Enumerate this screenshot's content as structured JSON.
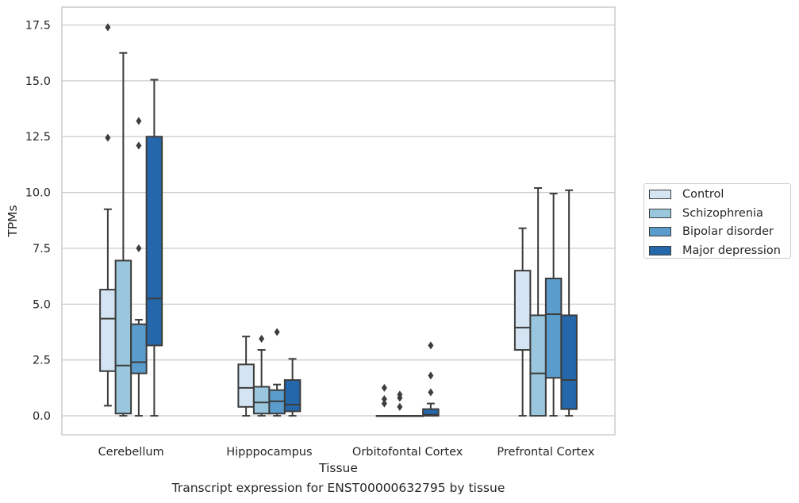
{
  "chart_data": {
    "type": "box",
    "title": "",
    "caption": "Transcript expression for ENST00000632795 by tissue",
    "xlabel": "Tissue",
    "ylabel": "TPMs",
    "ylim": [
      -0.85,
      18.3
    ],
    "yticks": [
      "0.0",
      "2.5",
      "5.0",
      "7.5",
      "10.0",
      "12.5",
      "15.0",
      "17.5"
    ],
    "ytick_values": [
      0,
      2.5,
      5,
      7.5,
      10,
      12.5,
      15,
      17.5
    ],
    "grid": "horizontal",
    "legend_position": "right",
    "categories": [
      "Cerebellum",
      "Hipppocampus",
      "Orbitofontal Cortex",
      "Prefrontal Cortex"
    ],
    "series": [
      {
        "name": "Control",
        "color": "#d4e4f2",
        "boxes": [
          {
            "whislo": 0.45,
            "q1": 2.0,
            "med": 4.35,
            "q3": 5.65,
            "whishi": 9.25,
            "fliers": [
              12.45,
              17.4
            ]
          },
          {
            "whislo": 0.0,
            "q1": 0.4,
            "med": 1.25,
            "q3": 2.3,
            "whishi": 3.55,
            "fliers": []
          },
          {
            "whislo": 0.0,
            "q1": 0.0,
            "med": 0.0,
            "q3": 0.0,
            "whishi": 0.0,
            "fliers": [
              0.55,
              0.75,
              1.25
            ]
          },
          {
            "whislo": 0.0,
            "q1": 2.95,
            "med": 3.95,
            "q3": 6.5,
            "whishi": 8.4,
            "fliers": []
          }
        ]
      },
      {
        "name": "Schizophrenia",
        "color": "#9ac6de",
        "boxes": [
          {
            "whislo": 0.0,
            "q1": 0.1,
            "med": 2.25,
            "q3": 6.95,
            "whishi": 16.25,
            "fliers": []
          },
          {
            "whislo": 0.0,
            "q1": 0.1,
            "med": 0.6,
            "q3": 1.3,
            "whishi": 2.95,
            "fliers": [
              3.45
            ]
          },
          {
            "whislo": 0.0,
            "q1": 0.0,
            "med": 0.0,
            "q3": 0.0,
            "whishi": 0.0,
            "fliers": [
              0.4,
              0.8,
              0.95
            ]
          },
          {
            "whislo": 0.0,
            "q1": 0.0,
            "med": 1.9,
            "q3": 4.5,
            "whishi": 10.2,
            "fliers": []
          }
        ]
      },
      {
        "name": "Bipolar disorder",
        "color": "#5a9ccb",
        "boxes": [
          {
            "whislo": 0.0,
            "q1": 1.9,
            "med": 2.4,
            "q3": 4.1,
            "whishi": 4.3,
            "fliers": [
              7.5,
              12.1,
              13.2
            ]
          },
          {
            "whislo": 0.0,
            "q1": 0.1,
            "med": 0.65,
            "q3": 1.15,
            "whishi": 1.4,
            "fliers": [
              3.75
            ]
          },
          {
            "whislo": 0.0,
            "q1": 0.0,
            "med": 0.0,
            "q3": 0.0,
            "whishi": 0.0,
            "fliers": []
          },
          {
            "whislo": 0.0,
            "q1": 1.7,
            "med": 4.55,
            "q3": 6.15,
            "whishi": 9.95,
            "fliers": []
          }
        ]
      },
      {
        "name": "Major depression",
        "color": "#2467ab",
        "boxes": [
          {
            "whislo": 0.0,
            "q1": 3.15,
            "med": 5.25,
            "q3": 12.5,
            "whishi": 15.05,
            "fliers": []
          },
          {
            "whislo": 0.0,
            "q1": 0.2,
            "med": 0.5,
            "q3": 1.6,
            "whishi": 2.55,
            "fliers": []
          },
          {
            "whislo": 0.0,
            "q1": 0.0,
            "med": 0.05,
            "q3": 0.3,
            "whishi": 0.55,
            "fliers": [
              1.05,
              1.8,
              3.15
            ]
          },
          {
            "whislo": 0.0,
            "q1": 0.3,
            "med": 1.6,
            "q3": 4.5,
            "whishi": 10.1,
            "fliers": []
          }
        ]
      }
    ]
  }
}
